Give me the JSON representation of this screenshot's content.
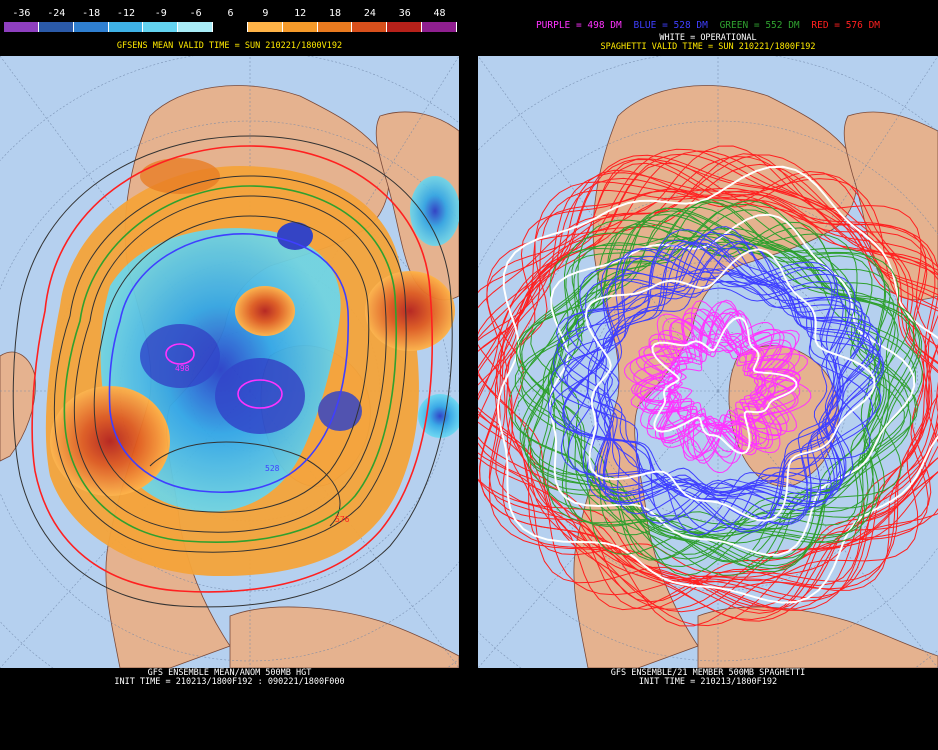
{
  "colorbar": {
    "labels": [
      "-36",
      "-24",
      "-18",
      "-12",
      "-9",
      "-6",
      "6",
      "9",
      "12",
      "18",
      "24",
      "36",
      "48"
    ],
    "colors": [
      "#8e3fbf",
      "#2b5aa8",
      "#2f7fd0",
      "#3fb2e6",
      "#63d3f0",
      "#a8ecf7",
      "#000000",
      "#ffb347",
      "#f59a2a",
      "#e97a1f",
      "#d8501c",
      "#b7211a",
      "#8f1f8f"
    ]
  },
  "left": {
    "title": "GFSENS MEAN VALID TIME = SUN 210221/1800V192",
    "footer_line1": "GFS ENSEMBLE MEAN/ANOM 500MB HGT",
    "footer_line2": "INIT TIME = 210213/1800F192 : 090221/1800F000",
    "contour_labels": [
      "498",
      "528",
      "576"
    ]
  },
  "right": {
    "legend": {
      "purple": "PURPLE = 498 DM",
      "blue": "BLUE = 528 DM",
      "green": "GREEN = 552 DM",
      "red": "RED = 576 DM"
    },
    "legend_colors": {
      "purple": "#ff33ff",
      "blue": "#3f3fff",
      "green": "#2fa02f",
      "red": "#ff2020"
    },
    "white_label": "WHITE = OPERATIONAL",
    "title": "SPAGHETTI VALID TIME = SUN 210221/1800F192",
    "footer_line1": "GFS ENSEMBLE/21 MEMBER 500MB SPAGHETTI",
    "footer_line2": "INIT TIME = 210213/1800F192"
  }
}
